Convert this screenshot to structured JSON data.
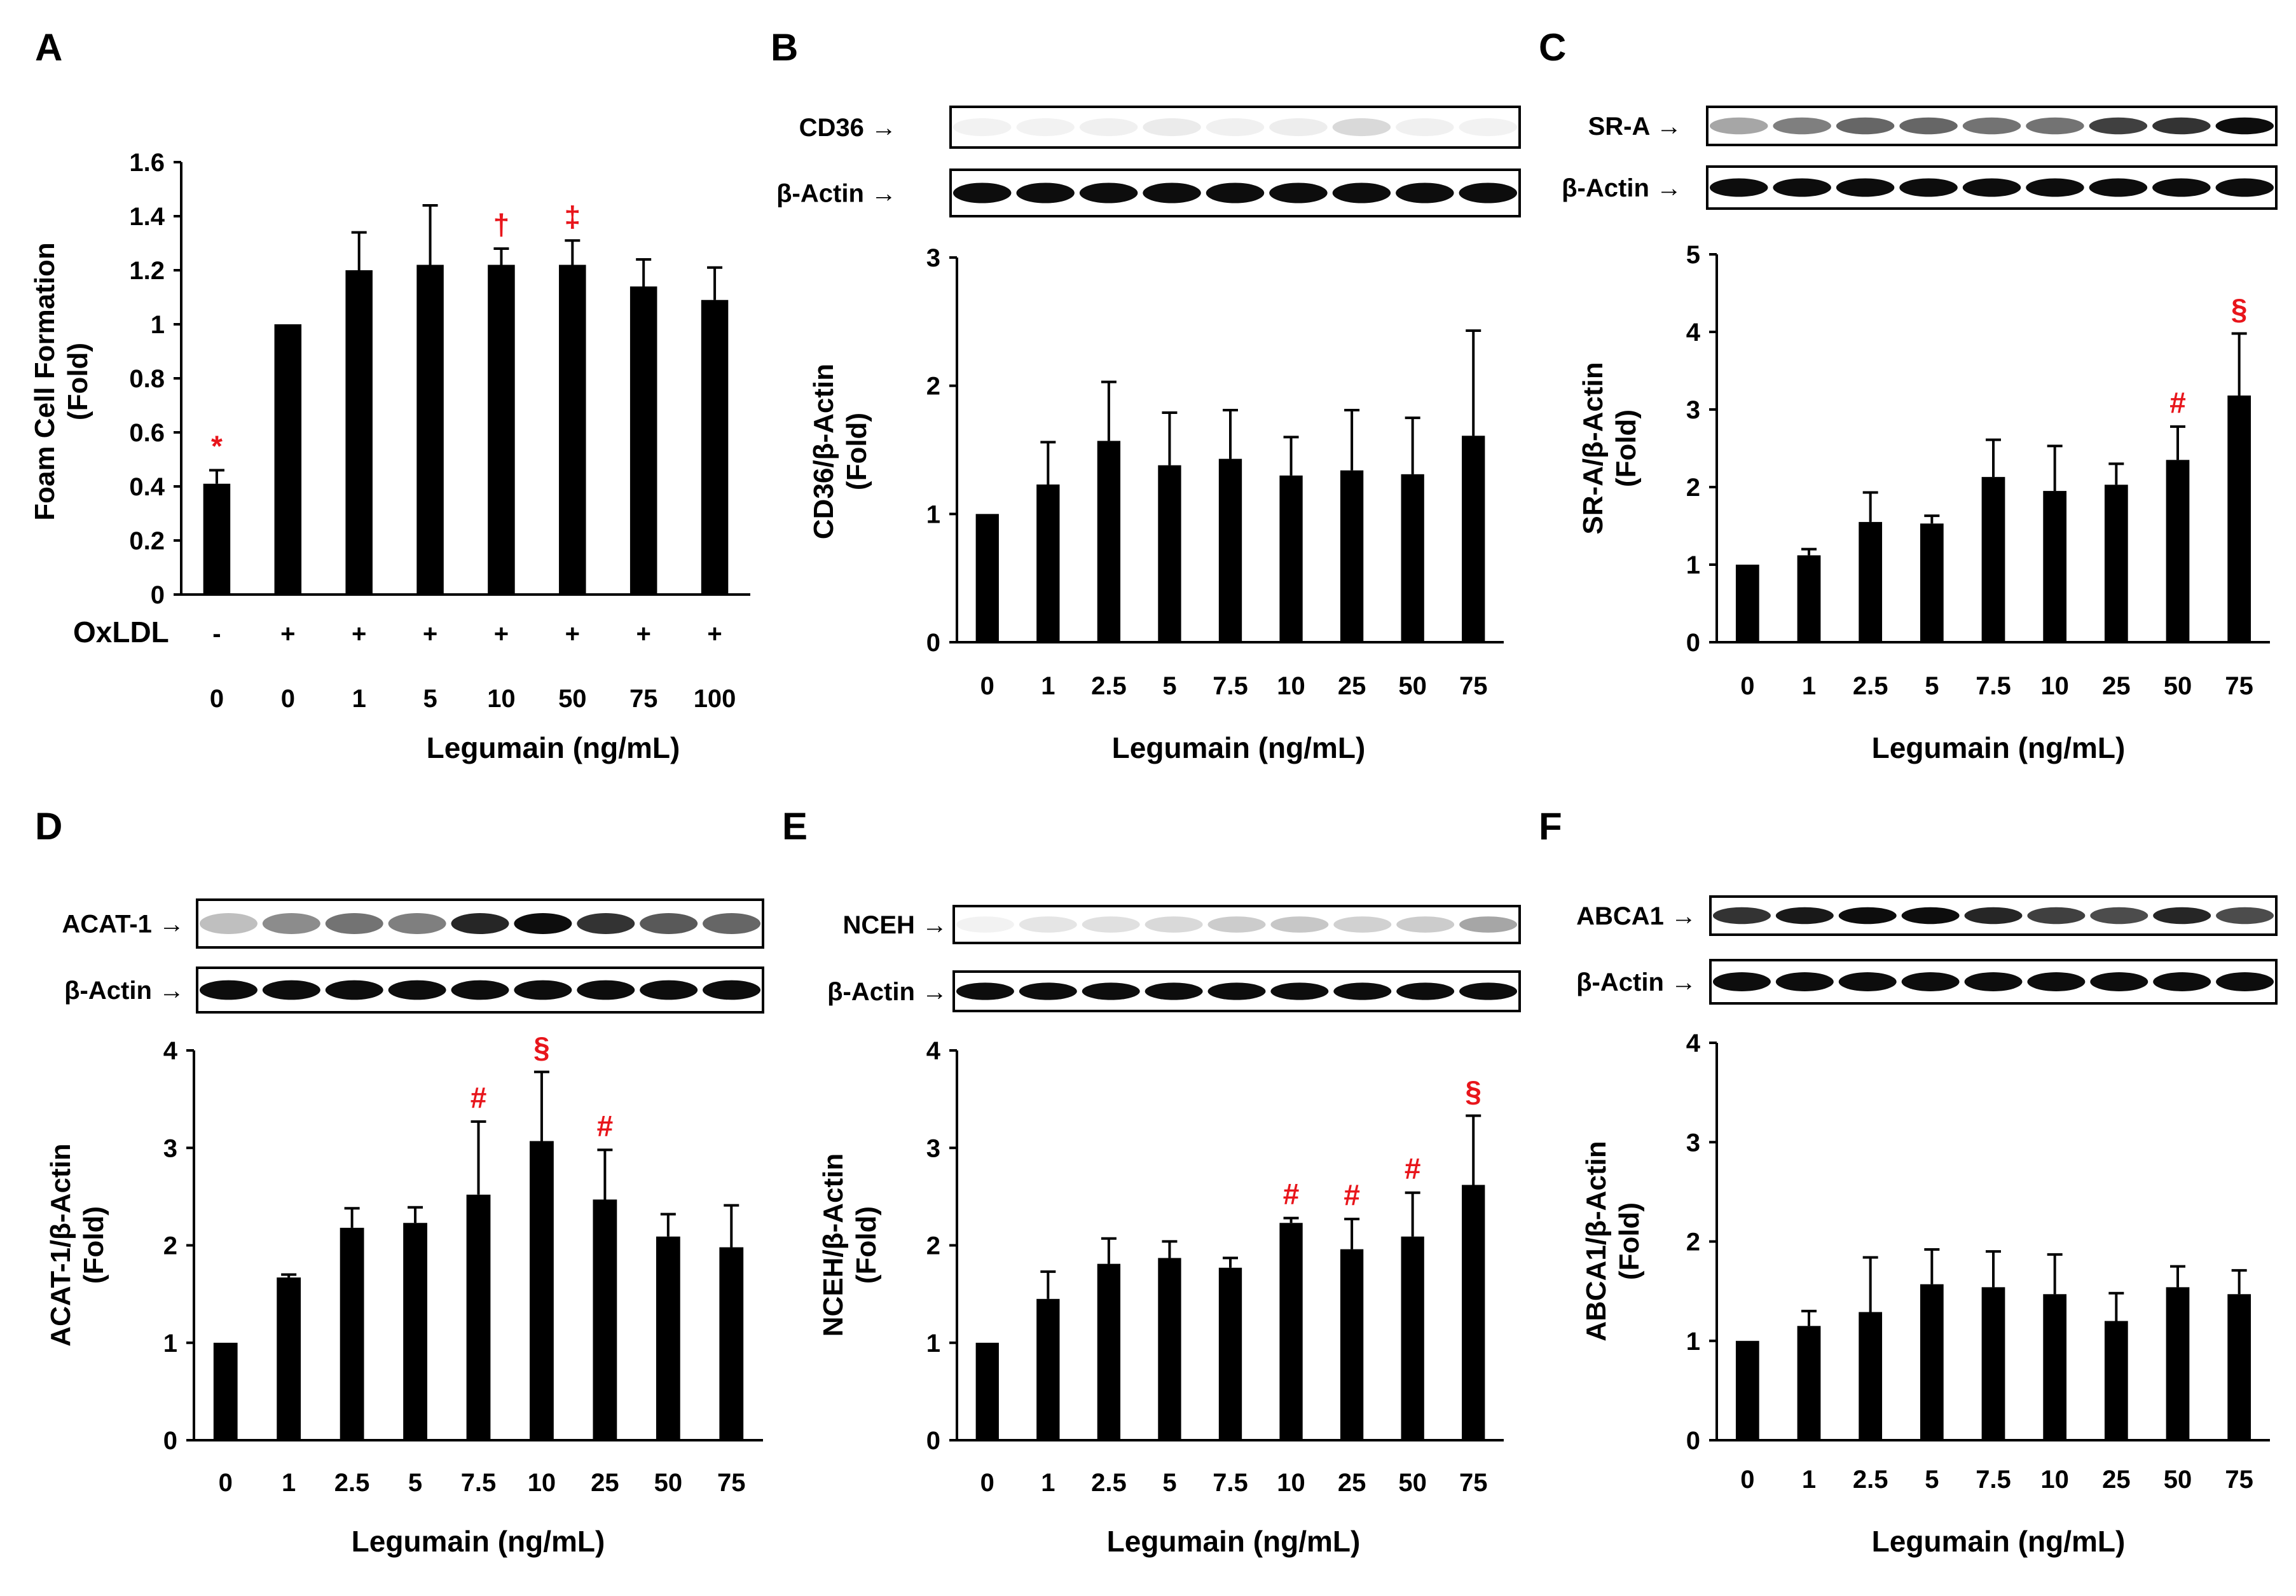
{
  "marker_color": "#e8151b",
  "bar_color": "#000000",
  "chart_data": [
    {
      "panel": "A",
      "type": "bar",
      "categories": [
        "0",
        "0",
        "1",
        "5",
        "10",
        "50",
        "75",
        "100"
      ],
      "oxldl": [
        "-",
        "+",
        "+",
        "+",
        "+",
        "+",
        "+",
        "+"
      ],
      "oxldl_label": "OxLDL",
      "values": [
        0.41,
        1.0,
        1.2,
        1.22,
        1.22,
        1.22,
        1.14,
        1.09
      ],
      "errors": [
        0.05,
        0,
        0.14,
        0.22,
        0.06,
        0.09,
        0.1,
        0.12
      ],
      "markers": [
        "*",
        "",
        "",
        "",
        "†",
        "‡",
        "",
        ""
      ],
      "ylim": [
        0,
        1.6
      ],
      "yticks": [
        "0",
        "0.2",
        "0.4",
        "0.6",
        "0.8",
        "1",
        "1.2",
        "1.4",
        "1.6"
      ],
      "ylabel": [
        "Foam Cell Formation",
        "(Fold)"
      ],
      "xlabel": "Legumain (ng/mL)",
      "blots": []
    },
    {
      "panel": "B",
      "type": "bar",
      "categories": [
        "0",
        "1",
        "2.5",
        "5",
        "7.5",
        "10",
        "25",
        "50",
        "75"
      ],
      "values": [
        1.0,
        1.23,
        1.57,
        1.38,
        1.43,
        1.3,
        1.34,
        1.31,
        1.61
      ],
      "errors": [
        0,
        0.33,
        0.46,
        0.41,
        0.38,
        0.3,
        0.47,
        0.44,
        0.82
      ],
      "markers": [
        "",
        "",
        "",
        "",
        "",
        "",
        "",
        "",
        ""
      ],
      "ylim": [
        0,
        3
      ],
      "yticks": [
        "0",
        "1",
        "2",
        "3"
      ],
      "ylabel": [
        "CD36/β-Actin",
        "(Fold)"
      ],
      "xlabel": "Legumain (ng/mL)",
      "blots": [
        "CD36",
        "β-Actin"
      ]
    },
    {
      "panel": "C",
      "type": "bar",
      "categories": [
        "0",
        "1",
        "2.5",
        "5",
        "7.5",
        "10",
        "25",
        "50",
        "75"
      ],
      "values": [
        1.0,
        1.12,
        1.55,
        1.53,
        2.13,
        1.95,
        2.03,
        2.35,
        3.18
      ],
      "errors": [
        0,
        0.08,
        0.38,
        0.1,
        0.48,
        0.58,
        0.27,
        0.43,
        0.8
      ],
      "markers": [
        "",
        "",
        "",
        "",
        "",
        "",
        "",
        "#",
        "§"
      ],
      "ylim": [
        0,
        5
      ],
      "yticks": [
        "0",
        "1",
        "2",
        "3",
        "4",
        "5"
      ],
      "ylabel": [
        "SR-A/β-Actin",
        "(Fold)"
      ],
      "xlabel": "Legumain (ng/mL)",
      "blots": [
        "SR-A",
        "β-Actin"
      ]
    },
    {
      "panel": "D",
      "type": "bar",
      "categories": [
        "0",
        "1",
        "2.5",
        "5",
        "7.5",
        "10",
        "25",
        "50",
        "75"
      ],
      "values": [
        1.0,
        1.67,
        2.18,
        2.23,
        2.52,
        3.07,
        2.47,
        2.09,
        1.98
      ],
      "errors": [
        0,
        0.03,
        0.2,
        0.16,
        0.75,
        0.71,
        0.51,
        0.23,
        0.43
      ],
      "markers": [
        "",
        "",
        "",
        "",
        "#",
        "§",
        "#",
        "",
        ""
      ],
      "ylim": [
        0,
        4
      ],
      "yticks": [
        "0",
        "1",
        "2",
        "3",
        "4"
      ],
      "ylabel": [
        "ACAT-1/β-Actin",
        "(Fold)"
      ],
      "xlabel": "Legumain (ng/mL)",
      "blots": [
        "ACAT-1",
        "β-Actin"
      ]
    },
    {
      "panel": "E",
      "type": "bar",
      "categories": [
        "0",
        "1",
        "2.5",
        "5",
        "7.5",
        "10",
        "25",
        "50",
        "75"
      ],
      "values": [
        1.0,
        1.45,
        1.81,
        1.87,
        1.77,
        2.23,
        1.96,
        2.09,
        2.62
      ],
      "errors": [
        0,
        0.28,
        0.26,
        0.17,
        0.1,
        0.05,
        0.31,
        0.45,
        0.71
      ],
      "markers": [
        "",
        "",
        "",
        "",
        "",
        "#",
        "#",
        "#",
        "§"
      ],
      "ylim": [
        0,
        4
      ],
      "yticks": [
        "0",
        "1",
        "2",
        "3",
        "4"
      ],
      "ylabel": [
        "NCEH/β-Actin",
        "(Fold)"
      ],
      "xlabel": "Legumain (ng/mL)",
      "blots": [
        "NCEH",
        "β-Actin"
      ]
    },
    {
      "panel": "F",
      "type": "bar",
      "categories": [
        "0",
        "1",
        "2.5",
        "5",
        "7.5",
        "10",
        "25",
        "50",
        "75"
      ],
      "values": [
        1.0,
        1.15,
        1.29,
        1.57,
        1.54,
        1.47,
        1.2,
        1.54,
        1.47
      ],
      "errors": [
        0,
        0.15,
        0.55,
        0.35,
        0.36,
        0.4,
        0.28,
        0.21,
        0.24
      ],
      "markers": [
        "",
        "",
        "",
        "",
        "",
        "",
        "",
        "",
        ""
      ],
      "ylim": [
        0,
        4
      ],
      "yticks": [
        "0",
        "1",
        "2",
        "3",
        "4"
      ],
      "ylabel": [
        "ABCA1/β-Actin",
        "(Fold)"
      ],
      "xlabel": "Legumain (ng/mL)",
      "blots": [
        "ABCA1",
        "β-Actin"
      ]
    }
  ]
}
